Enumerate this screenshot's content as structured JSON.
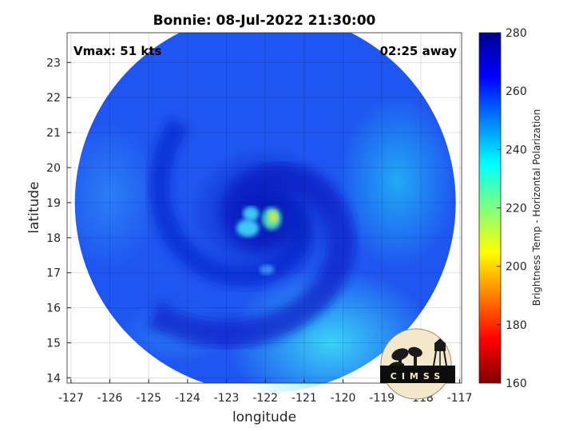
{
  "chart_data": {
    "type": "heatmap",
    "title": "Bonnie: 08-Jul-2022 21:30:00",
    "xlabel": "longitude",
    "ylabel": "latitude",
    "xlim": [
      -127.1,
      -116.95
    ],
    "ylim": [
      13.85,
      23.85
    ],
    "xticks": [
      -127,
      -126,
      -125,
      -124,
      -123,
      -122,
      -121,
      -120,
      -119,
      -118,
      -117
    ],
    "yticks": [
      14,
      15,
      16,
      17,
      18,
      19,
      20,
      21,
      22,
      23
    ],
    "grid": true,
    "annotations": {
      "vmax": "Vmax: 51 kts",
      "time_offset": "02:25 away"
    },
    "storm_center": {
      "lon": -122.0,
      "lat": 18.5
    },
    "swath_center": {
      "lon": -122.0,
      "lat": 19.0
    },
    "swath_radius_deg": 4.9,
    "colorbar": {
      "label": "Brightness Temp - Horizontal Polarization",
      "range": [
        160,
        280
      ],
      "ticks": [
        160,
        180,
        200,
        220,
        240,
        260,
        280
      ],
      "colormap": [
        "#7f0000",
        "#ff0000",
        "#ff8000",
        "#ffff00",
        "#80ff80",
        "#00ffff",
        "#0080ff",
        "#0000ff",
        "#00008f"
      ]
    },
    "field_colors": {
      "outer": "#1f55f0",
      "spiral_band": "#0a20c8",
      "core": "#0616b8",
      "warm_ne": "#22b8f8",
      "warm_se": "#3ee0f8",
      "eyewall_cold": "#3cc8f8",
      "eyewall_warm": "#c8e850"
    }
  },
  "logo": {
    "text": "CIMSS"
  }
}
